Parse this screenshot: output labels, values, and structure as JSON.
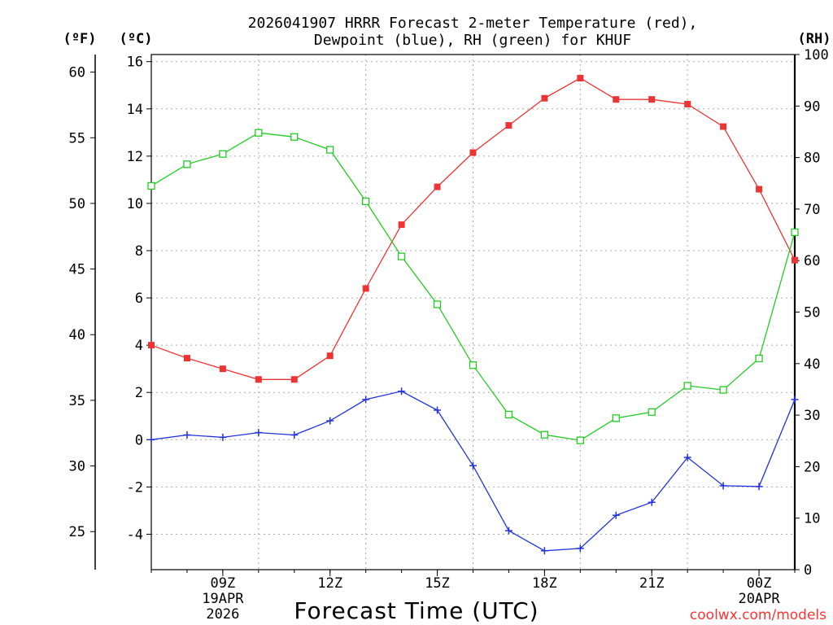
{
  "chart_data": {
    "type": "line",
    "title_line1": "2026041907 HRRR Forecast 2-meter Temperature (red),",
    "title_line2": "Dewpoint (blue), RH (green) for KHUF",
    "unit_left_outer": "(ºF)",
    "unit_left_inner": "(ºC)",
    "unit_right": "(RH)",
    "xlabel": "Forecast Time (UTC)",
    "watermark": "coolwx.com/models",
    "x_hours": [
      7,
      8,
      9,
      10,
      11,
      12,
      13,
      14,
      15,
      16,
      17,
      18,
      19,
      20,
      21,
      22,
      23,
      24,
      25
    ],
    "xlim": [
      7,
      25
    ],
    "x_ticks": [
      {
        "hour": 9,
        "label": "09Z",
        "sub1": "19APR",
        "sub2": "2026"
      },
      {
        "hour": 12,
        "label": "12Z",
        "sub1": "",
        "sub2": ""
      },
      {
        "hour": 15,
        "label": "15Z",
        "sub1": "",
        "sub2": ""
      },
      {
        "hour": 18,
        "label": "18Z",
        "sub1": "",
        "sub2": ""
      },
      {
        "hour": 21,
        "label": "21Z",
        "sub1": "",
        "sub2": ""
      },
      {
        "hour": 24,
        "label": "00Z",
        "sub1": "20APR",
        "sub2": ""
      }
    ],
    "celsius_axis": {
      "ylim": [
        -5.5,
        16.3
      ],
      "ticks": [
        "-4",
        "-2",
        "0",
        "2",
        "4",
        "6",
        "8",
        "10",
        "12",
        "14",
        "16"
      ]
    },
    "fahrenheit_axis": {
      "ticks": [
        "25",
        "30",
        "35",
        "40",
        "45",
        "50",
        "55",
        "60"
      ]
    },
    "rh_axis": {
      "ylim": [
        0,
        100
      ],
      "ticks": [
        "0",
        "10",
        "20",
        "30",
        "40",
        "50",
        "60",
        "70",
        "80",
        "90",
        "100"
      ]
    },
    "series": [
      {
        "name": "2-meter Temperature",
        "unit": "C",
        "color": "#ee3333",
        "marker": "filled-square",
        "values": [
          4.0,
          3.45,
          3.0,
          2.55,
          2.55,
          3.55,
          6.4,
          9.1,
          10.7,
          12.15,
          13.3,
          14.45,
          15.3,
          14.4,
          14.4,
          14.2,
          13.25,
          10.6,
          7.6
        ]
      },
      {
        "name": "Dewpoint",
        "unit": "C",
        "color": "#2233dd",
        "marker": "plus",
        "values": [
          0.0,
          0.2,
          0.1,
          0.3,
          0.2,
          0.8,
          1.7,
          2.05,
          1.25,
          -1.1,
          -3.85,
          -4.7,
          -4.6,
          -3.2,
          -2.65,
          -0.75,
          -1.95,
          -1.98,
          1.7
        ]
      },
      {
        "name": "RH",
        "unit": "%",
        "color": "#22cc22",
        "marker": "open-square",
        "values": [
          74.5,
          78.7,
          80.7,
          84.8,
          84.0,
          81.5,
          71.5,
          60.8,
          51.5,
          39.7,
          30.1,
          26.2,
          25.1,
          29.4,
          30.6,
          35.7,
          34.9,
          41.0,
          65.5
        ]
      }
    ]
  }
}
